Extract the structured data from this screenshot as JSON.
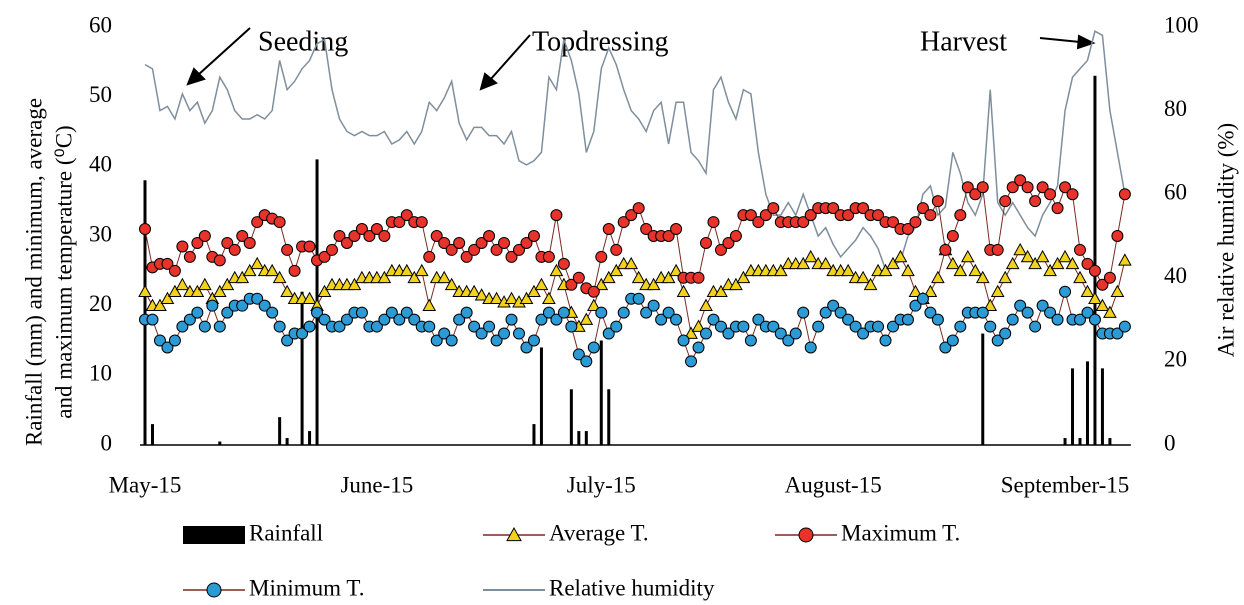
{
  "chart_data": {
    "type": "combo",
    "y_label": [
      "Rainfall (mm) and minimum, average",
      "and maximum temperature (⁰C)"
    ],
    "y2_label": "Air relative humidity (%)",
    "annotations": [
      "Seeding",
      "Topdressing",
      "Harvest"
    ],
    "categories": [
      "May-15",
      null,
      null,
      null,
      null,
      null,
      null,
      null,
      null,
      null,
      null,
      null,
      null,
      null,
      null,
      null,
      null,
      null,
      null,
      null,
      null,
      null,
      null,
      null,
      null,
      null,
      null,
      null,
      null,
      null,
      null,
      "June-15",
      null,
      null,
      null,
      null,
      null,
      null,
      null,
      null,
      null,
      null,
      null,
      null,
      null,
      null,
      null,
      null,
      null,
      null,
      null,
      null,
      null,
      null,
      null,
      null,
      null,
      null,
      null,
      null,
      null,
      "July-15",
      null,
      null,
      null,
      null,
      null,
      null,
      null,
      null,
      null,
      null,
      null,
      null,
      null,
      null,
      null,
      null,
      null,
      null,
      null,
      null,
      null,
      null,
      null,
      null,
      null,
      null,
      null,
      null,
      null,
      null,
      "August-15",
      null,
      null,
      null,
      null,
      null,
      null,
      null,
      null,
      null,
      null,
      null,
      null,
      null,
      null,
      null,
      null,
      null,
      null,
      null,
      null,
      null,
      null,
      null,
      null,
      null,
      null,
      null,
      null,
      null,
      null,
      "September-15",
      null,
      null,
      null,
      null,
      null,
      null,
      null,
      null
    ],
    "ylim": [
      0,
      60
    ],
    "yticks": [
      0,
      10,
      20,
      30,
      40,
      50,
      60
    ],
    "y2lim": [
      0,
      100
    ],
    "y2ticks": [
      0,
      20,
      40,
      60,
      80,
      100
    ],
    "series": [
      {
        "name": "Rainfall",
        "kind": "bar",
        "color": "#000000",
        "values": [
          38,
          3,
          0,
          0,
          0,
          0,
          0,
          0,
          0,
          0,
          0.5,
          0,
          0,
          0,
          0,
          0,
          0,
          0,
          4,
          1,
          0,
          22,
          2,
          41,
          0,
          0,
          0,
          0,
          0,
          0,
          0,
          0,
          0,
          0,
          0,
          0,
          0,
          0,
          0,
          0,
          0,
          0,
          0,
          0,
          0,
          0,
          0,
          0,
          0,
          0,
          0,
          0,
          3,
          14,
          0,
          0,
          0,
          8,
          2,
          2,
          0,
          15,
          8,
          0,
          0,
          0,
          0,
          0,
          0,
          0,
          0,
          0,
          0,
          0,
          0,
          0,
          0,
          0,
          0,
          0,
          0,
          0,
          0,
          0,
          0,
          0,
          0,
          0,
          0,
          0,
          0,
          0,
          0,
          0,
          0,
          0,
          0,
          0,
          0,
          0,
          0,
          0,
          0,
          0,
          0,
          0,
          0,
          0,
          0,
          0,
          0,
          0,
          16,
          0,
          0,
          0,
          0,
          0,
          0,
          0,
          0,
          0,
          0,
          1,
          11,
          1,
          12,
          53,
          11,
          1,
          0,
          0
        ]
      },
      {
        "name": "Average T.",
        "kind": "triangle",
        "color": "#f2d21b",
        "values": [
          22,
          20,
          20,
          21,
          22,
          23,
          22,
          22,
          23,
          21,
          22,
          23,
          24,
          24,
          25,
          26,
          25,
          25,
          24,
          22,
          21,
          21,
          21,
          20,
          22,
          23,
          23,
          23,
          23,
          24,
          24,
          24,
          24,
          25,
          25,
          25,
          24,
          25,
          20,
          24,
          24,
          23,
          22,
          22,
          22,
          21.5,
          21,
          21,
          20.5,
          21,
          20.5,
          21,
          22,
          23,
          21,
          25,
          23,
          19,
          17,
          18,
          20,
          23,
          24,
          25,
          26,
          26,
          24,
          23,
          23,
          24,
          24,
          25,
          22,
          16,
          17,
          20,
          22,
          22,
          23,
          23,
          24,
          25,
          25,
          25,
          25,
          25,
          26,
          26,
          26,
          27,
          26,
          26,
          25,
          25,
          25,
          24,
          24,
          23,
          25,
          25,
          26,
          27,
          25,
          22,
          21,
          22,
          24,
          28,
          26,
          25,
          27,
          25,
          24,
          20,
          22,
          24,
          26,
          28,
          27,
          26,
          27,
          25,
          26,
          27,
          26,
          24,
          22,
          21,
          20,
          19,
          22,
          26.5
        ]
      },
      {
        "name": "Maximum T.",
        "kind": "circle",
        "color": "#e8332b",
        "values": [
          31,
          25.5,
          26,
          26,
          25,
          28.5,
          27,
          29,
          30,
          27,
          26.5,
          29,
          28,
          30,
          29,
          32,
          33,
          32.5,
          32,
          28,
          25,
          28.5,
          28.5,
          26.5,
          27,
          28,
          30,
          29,
          30,
          31,
          30,
          31,
          30,
          32,
          32,
          33,
          32,
          32,
          27,
          30,
          29,
          28,
          29,
          27,
          28,
          29,
          30,
          28,
          29,
          27,
          28,
          29,
          30,
          27,
          27,
          33,
          26,
          23,
          24,
          22.5,
          22,
          27,
          31,
          28,
          32,
          33,
          34,
          31,
          30,
          30,
          30,
          31,
          24,
          24,
          24,
          29,
          32,
          28,
          29,
          30,
          33,
          33,
          32,
          33,
          34,
          32,
          32,
          32,
          32,
          33,
          34,
          34,
          34,
          33,
          33,
          34,
          34,
          33,
          33,
          32,
          32,
          31,
          31,
          32,
          34,
          33,
          35,
          28,
          30,
          33,
          37,
          36,
          37,
          28,
          28,
          35,
          37,
          38,
          37,
          35,
          37,
          36,
          34,
          37,
          36,
          28,
          26,
          25,
          23,
          24,
          30,
          36
        ]
      },
      {
        "name": "Minimum T.",
        "kind": "circle",
        "color": "#2c9ad5",
        "values": [
          18,
          18,
          15,
          14,
          15,
          17,
          18,
          19,
          17,
          20,
          17,
          19,
          20,
          20,
          21,
          21,
          20,
          19,
          17,
          15,
          16,
          16,
          17,
          19,
          18,
          17,
          17,
          18,
          19,
          19,
          17,
          17,
          18,
          19,
          18,
          19,
          18,
          17,
          17,
          15,
          16,
          15,
          18,
          19,
          17,
          16,
          17,
          15,
          16,
          18,
          16,
          14,
          15,
          18,
          19,
          18,
          19,
          17,
          13,
          12,
          14,
          19,
          16,
          17,
          19,
          21,
          21,
          19,
          20,
          18,
          19,
          18,
          15,
          12,
          14,
          16,
          18,
          17,
          16,
          17,
          17,
          15,
          18,
          17,
          17,
          16,
          15,
          16,
          19,
          14,
          17,
          19,
          20,
          19,
          18,
          17,
          16,
          17,
          17,
          15,
          17,
          18,
          18,
          20,
          21,
          19,
          18,
          14,
          15,
          17,
          19,
          19,
          19,
          17,
          15,
          16,
          18,
          20,
          19,
          17,
          20,
          19,
          18,
          22,
          18,
          18,
          19,
          18,
          16,
          16,
          16,
          17
        ]
      },
      {
        "name": "Relative humidity",
        "kind": "line",
        "axis": "y2",
        "color": "#7f8e9c",
        "values": [
          91,
          90,
          80,
          81,
          78,
          84,
          80,
          82,
          77,
          80,
          88,
          85,
          80,
          78,
          78,
          79,
          78,
          80,
          92,
          85,
          87,
          90,
          92,
          96,
          97,
          85,
          78,
          75,
          74,
          75,
          74,
          74,
          75,
          72,
          73,
          75,
          72,
          75,
          82,
          80,
          83,
          87,
          77,
          73,
          76,
          76,
          74,
          74,
          72,
          75,
          68,
          67,
          68,
          70,
          88,
          85,
          97,
          92,
          84,
          70,
          75,
          90,
          95,
          91,
          85,
          80,
          78,
          75,
          80,
          82,
          72,
          82,
          82,
          70,
          68,
          65,
          85,
          88,
          82,
          78,
          85,
          84,
          70,
          60,
          55,
          55,
          58,
          55,
          60,
          55,
          50,
          52,
          48,
          45,
          47,
          49,
          52,
          50,
          47,
          42,
          43,
          44,
          50,
          52,
          60,
          62,
          55,
          57,
          70,
          65,
          58,
          55,
          60,
          85,
          58,
          55,
          58,
          55,
          52,
          50,
          55,
          58,
          62,
          80,
          88,
          90,
          92,
          99,
          98,
          80,
          70,
          60
        ]
      }
    ]
  }
}
